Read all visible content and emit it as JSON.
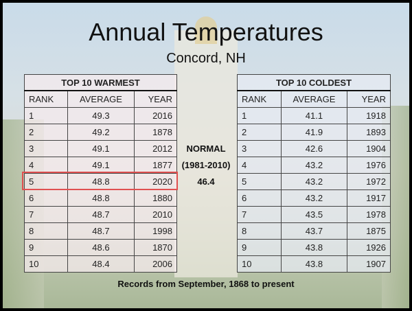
{
  "title": "Annual Temperatures",
  "subtitle": "Concord, NH",
  "warmest": {
    "heading": "TOP 10 WARMEST",
    "columns": [
      "RANK",
      "AVERAGE",
      "YEAR"
    ],
    "rows": [
      [
        "1",
        "49.3",
        "2016"
      ],
      [
        "2",
        "49.2",
        "1878"
      ],
      [
        "3",
        "49.1",
        "2012"
      ],
      [
        "4",
        "49.1",
        "1877"
      ],
      [
        "5",
        "48.8",
        "2020"
      ],
      [
        "6",
        "48.8",
        "1880"
      ],
      [
        "7",
        "48.7",
        "2010"
      ],
      [
        "8",
        "48.7",
        "1998"
      ],
      [
        "9",
        "48.6",
        "1870"
      ],
      [
        "10",
        "48.4",
        "2006"
      ]
    ],
    "highlighted_rank": "5",
    "highlight_color": "#e05050"
  },
  "coldest": {
    "heading": "TOP 10 COLDEST",
    "columns": [
      "RANK",
      "AVERAGE",
      "YEAR"
    ],
    "rows": [
      [
        "1",
        "41.1",
        "1918"
      ],
      [
        "2",
        "41.9",
        "1893"
      ],
      [
        "3",
        "42.6",
        "1904"
      ],
      [
        "4",
        "43.2",
        "1976"
      ],
      [
        "5",
        "43.2",
        "1972"
      ],
      [
        "6",
        "43.2",
        "1917"
      ],
      [
        "7",
        "43.5",
        "1978"
      ],
      [
        "8",
        "43.7",
        "1875"
      ],
      [
        "9",
        "43.8",
        "1926"
      ],
      [
        "10",
        "43.8",
        "1907"
      ]
    ]
  },
  "normal": {
    "label": "NORMAL",
    "period": "(1981-2010)",
    "value": "46.4"
  },
  "footer": "Records from September, 1868 to present"
}
